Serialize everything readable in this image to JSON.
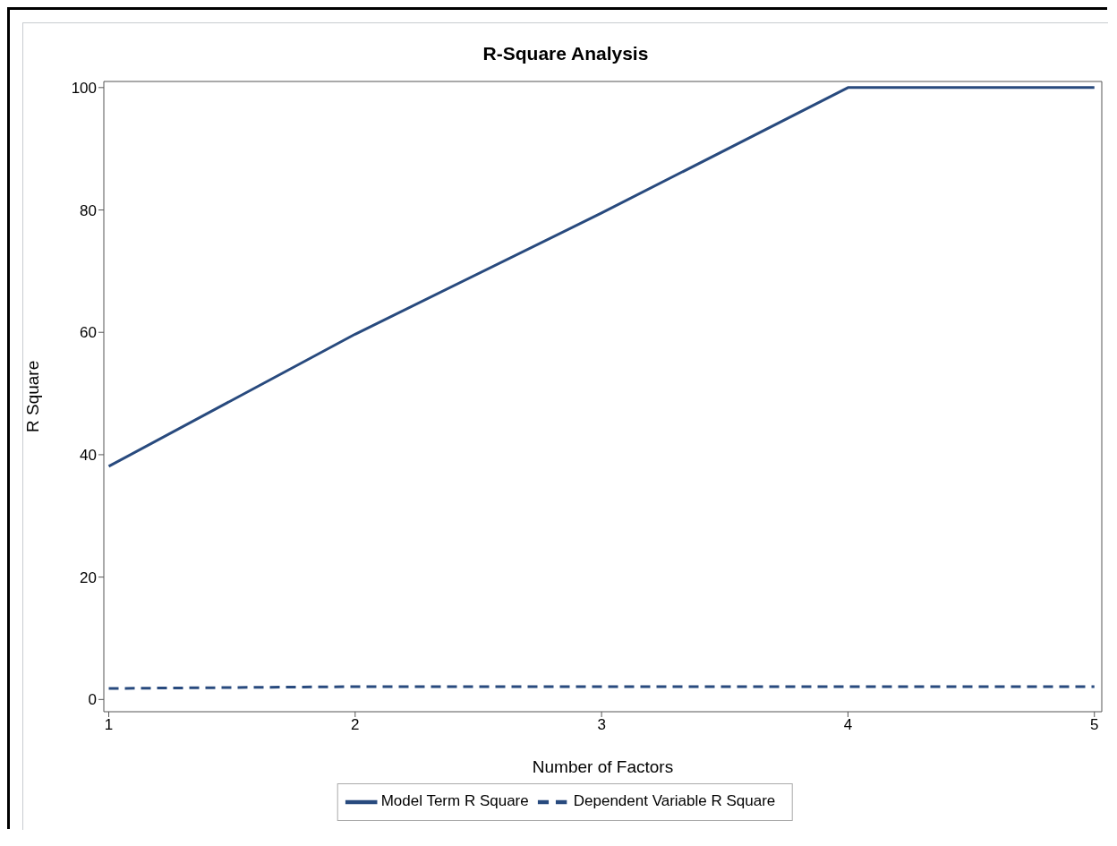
{
  "chart_data": {
    "type": "line",
    "title": "R-Square Analysis",
    "xlabel": "Number of Factors",
    "ylabel": "R Square",
    "x": [
      1,
      2,
      3,
      4,
      5
    ],
    "series": [
      {
        "name": "Model Term R Square",
        "color": "#284a7e",
        "values": [
          38.1,
          59.7,
          79.5,
          100,
          100
        ],
        "line_style": "solid"
      },
      {
        "name": "Dependent Variable R Square",
        "color": "#284a7e",
        "values": [
          1.8,
          2.1,
          2.1,
          2.1,
          2.1
        ],
        "line_style": "dashed"
      }
    ],
    "xlim": [
      0.98,
      5.03
    ],
    "xticks": [
      1,
      2,
      3,
      4,
      5
    ],
    "ylim": [
      -2,
      101
    ],
    "yticks": [
      0,
      20,
      40,
      60,
      80,
      100
    ],
    "grid": false,
    "legend": "bottom",
    "marker": "none"
  }
}
